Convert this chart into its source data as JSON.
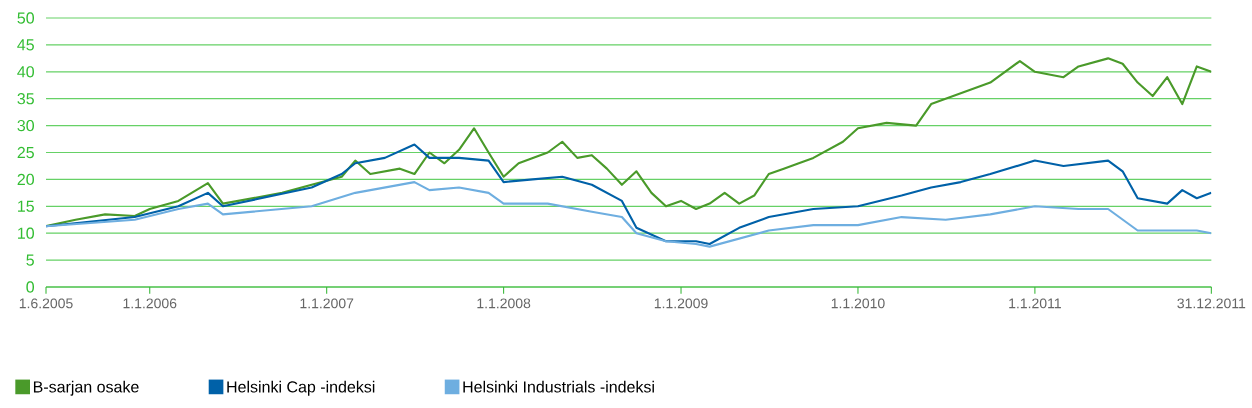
{
  "chart_data": {
    "type": "line",
    "xlim": [
      "2005-06-01",
      "2011-12-31"
    ],
    "xticks": [
      {
        "value": "2005-06-01",
        "label": "1.6.2005"
      },
      {
        "value": "2006-01-01",
        "label": "1.1.2006"
      },
      {
        "value": "2007-01-01",
        "label": "1.1.2007"
      },
      {
        "value": "2008-01-01",
        "label": "1.1.2008"
      },
      {
        "value": "2009-01-01",
        "label": "1.1.2009"
      },
      {
        "value": "2010-01-01",
        "label": "1.1.2010"
      },
      {
        "value": "2011-01-01",
        "label": "1.1.2011"
      },
      {
        "value": "2011-12-31",
        "label": "31.12.2011"
      }
    ],
    "ylim": [
      0,
      50
    ],
    "yticks": [
      0,
      5,
      10,
      15,
      20,
      25,
      30,
      35,
      40,
      45,
      50
    ],
    "grid": "y",
    "legend": "bottom",
    "marker": "none",
    "line_style": "solid",
    "series": [
      {
        "name": "B-sarjan osake",
        "color": "#4a9a2a",
        "x": [
          "2005-06-01",
          "2005-08-01",
          "2005-10-01",
          "2005-12-01",
          "2006-01-01",
          "2006-03-01",
          "2006-05-01",
          "2006-06-01",
          "2006-08-01",
          "2006-10-01",
          "2006-12-01",
          "2007-02-01",
          "2007-03-01",
          "2007-04-01",
          "2007-06-01",
          "2007-07-01",
          "2007-08-01",
          "2007-09-01",
          "2007-10-01",
          "2007-11-01",
          "2007-12-01",
          "2008-01-01",
          "2008-02-01",
          "2008-04-01",
          "2008-05-01",
          "2008-06-01",
          "2008-07-01",
          "2008-08-01",
          "2008-09-01",
          "2008-10-01",
          "2008-11-01",
          "2008-12-01",
          "2009-01-01",
          "2009-02-01",
          "2009-03-01",
          "2009-04-01",
          "2009-05-01",
          "2009-06-01",
          "2009-07-01",
          "2009-08-01",
          "2009-09-01",
          "2009-10-01",
          "2009-12-01",
          "2010-01-01",
          "2010-03-01",
          "2010-05-01",
          "2010-06-01",
          "2010-08-01",
          "2010-10-01",
          "2010-12-01",
          "2011-01-01",
          "2011-03-01",
          "2011-04-01",
          "2011-06-01",
          "2011-07-01",
          "2011-08-01",
          "2011-09-01",
          "2011-10-01",
          "2011-11-01",
          "2011-12-01",
          "2011-12-31"
        ],
        "values": [
          11.3,
          12.5,
          13.5,
          13.2,
          14.5,
          16,
          19.3,
          15.5,
          16.5,
          17.5,
          19,
          20.5,
          23.5,
          21,
          22,
          21,
          25,
          23,
          25.5,
          29.5,
          25,
          20.5,
          23,
          25,
          27,
          24,
          24.5,
          22,
          19,
          21.5,
          17.5,
          15,
          16,
          14.5,
          15.5,
          17.5,
          15.5,
          17,
          21,
          22,
          23,
          24,
          27,
          29.5,
          30.5,
          30,
          34,
          36,
          38,
          42,
          40,
          39,
          41,
          42.5,
          41.5,
          38,
          35.5,
          39,
          34,
          41,
          40
        ]
      },
      {
        "name": "Helsinki Cap -indeksi",
        "color": "#0061a8",
        "x": [
          "2005-06-01",
          "2005-12-01",
          "2006-03-01",
          "2006-05-01",
          "2006-06-01",
          "2006-12-01",
          "2007-02-01",
          "2007-03-01",
          "2007-05-01",
          "2007-07-01",
          "2007-08-01",
          "2007-10-01",
          "2007-12-01",
          "2008-01-01",
          "2008-03-01",
          "2008-05-01",
          "2008-07-01",
          "2008-09-01",
          "2008-10-01",
          "2008-12-01",
          "2009-02-01",
          "2009-03-01",
          "2009-05-01",
          "2009-07-01",
          "2009-10-01",
          "2010-01-01",
          "2010-04-01",
          "2010-06-01",
          "2010-08-01",
          "2010-10-01",
          "2011-01-01",
          "2011-03-01",
          "2011-06-01",
          "2011-07-01",
          "2011-08-01",
          "2011-10-01",
          "2011-11-01",
          "2011-12-01",
          "2011-12-31"
        ],
        "values": [
          11.3,
          13,
          15,
          17.5,
          15,
          18.5,
          21,
          23,
          24,
          26.5,
          24,
          24,
          23.5,
          19.5,
          20,
          20.5,
          19,
          16,
          11,
          8.5,
          8.5,
          8,
          11,
          13,
          14.5,
          15,
          17,
          18.5,
          19.5,
          21,
          23.5,
          22.5,
          23.5,
          21.5,
          16.5,
          15.5,
          18,
          16.5,
          17.5
        ]
      },
      {
        "name": "Helsinki Industrials -indeksi",
        "color": "#6eaee0",
        "x": [
          "2005-06-01",
          "2005-12-01",
          "2006-03-01",
          "2006-05-01",
          "2006-06-01",
          "2006-12-01",
          "2007-03-01",
          "2007-05-01",
          "2007-07-01",
          "2007-08-01",
          "2007-10-01",
          "2007-12-01",
          "2008-01-01",
          "2008-04-01",
          "2008-07-01",
          "2008-09-01",
          "2008-10-01",
          "2008-12-01",
          "2009-02-01",
          "2009-03-01",
          "2009-05-01",
          "2009-07-01",
          "2009-10-01",
          "2010-01-01",
          "2010-04-01",
          "2010-07-01",
          "2010-10-01",
          "2011-01-01",
          "2011-04-01",
          "2011-06-01",
          "2011-08-01",
          "2011-10-01",
          "2011-12-01",
          "2011-12-31"
        ],
        "values": [
          11.3,
          12.5,
          14.5,
          15.5,
          13.5,
          15,
          17.5,
          18.5,
          19.5,
          18,
          18.5,
          17.5,
          15.5,
          15.5,
          14,
          13,
          10,
          8.5,
          8,
          7.5,
          9,
          10.5,
          11.5,
          11.5,
          13,
          12.5,
          13.5,
          15,
          14.5,
          14.5,
          10.5,
          10.5,
          10.5,
          10
        ]
      }
    ]
  }
}
